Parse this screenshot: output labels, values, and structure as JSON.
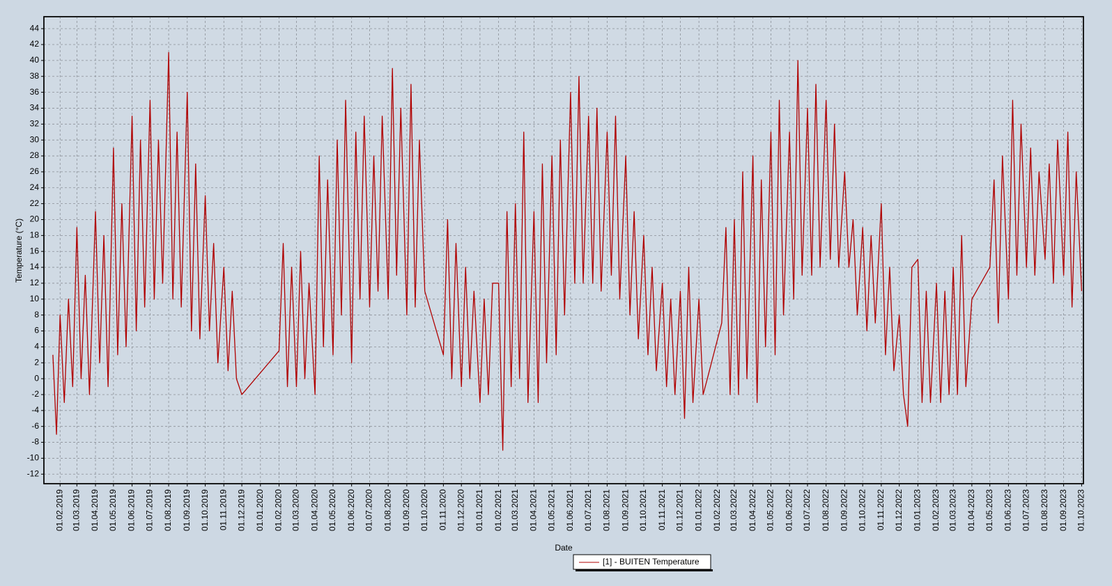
{
  "chart_data": {
    "type": "line",
    "y_label": "Temperature (°C)",
    "x_label": "Date",
    "legend": "bottom",
    "grid": true,
    "xlim": [
      "2019-01-05",
      "2023-10-04"
    ],
    "ylim": [
      -13.2,
      45.5
    ],
    "yticks": [
      -12,
      -10,
      -8,
      -6,
      -4,
      -2,
      0,
      2,
      4,
      6,
      8,
      10,
      12,
      14,
      16,
      18,
      20,
      22,
      24,
      26,
      28,
      30,
      32,
      34,
      36,
      38,
      40,
      42,
      44
    ],
    "xticks": [
      {
        "value": "2019-02-01",
        "label": "01.02.2019"
      },
      {
        "value": "2019-03-01",
        "label": "01.03.2019"
      },
      {
        "value": "2019-04-01",
        "label": "01.04.2019"
      },
      {
        "value": "2019-05-01",
        "label": "01.05.2019"
      },
      {
        "value": "2019-06-01",
        "label": "01.06.2019"
      },
      {
        "value": "2019-07-01",
        "label": "01.07.2019"
      },
      {
        "value": "2019-08-01",
        "label": "01.08.2019"
      },
      {
        "value": "2019-09-01",
        "label": "01.09.2019"
      },
      {
        "value": "2019-10-01",
        "label": "01.10.2019"
      },
      {
        "value": "2019-11-01",
        "label": "01.11.2019"
      },
      {
        "value": "2019-12-01",
        "label": "01.12.2019"
      },
      {
        "value": "2020-01-01",
        "label": "01.01.2020"
      },
      {
        "value": "2020-02-01",
        "label": "01.02.2020"
      },
      {
        "value": "2020-03-01",
        "label": "01.03.2020"
      },
      {
        "value": "2020-04-01",
        "label": "01.04.2020"
      },
      {
        "value": "2020-05-01",
        "label": "01.05.2020"
      },
      {
        "value": "2020-06-01",
        "label": "01.06.2020"
      },
      {
        "value": "2020-07-01",
        "label": "01.07.2020"
      },
      {
        "value": "2020-08-01",
        "label": "01.08.2020"
      },
      {
        "value": "2020-09-01",
        "label": "01.09.2020"
      },
      {
        "value": "2020-10-01",
        "label": "01.10.2020"
      },
      {
        "value": "2020-11-01",
        "label": "01.11.2020"
      },
      {
        "value": "2020-12-01",
        "label": "01.12.2020"
      },
      {
        "value": "2021-01-01",
        "label": "01.01.2021"
      },
      {
        "value": "2021-02-01",
        "label": "01.02.2021"
      },
      {
        "value": "2021-03-01",
        "label": "01.03.2021"
      },
      {
        "value": "2021-04-01",
        "label": "01.04.2021"
      },
      {
        "value": "2021-05-01",
        "label": "01.05.2021"
      },
      {
        "value": "2021-06-01",
        "label": "01.06.2021"
      },
      {
        "value": "2021-07-01",
        "label": "01.07.2021"
      },
      {
        "value": "2021-08-01",
        "label": "01.08.2021"
      },
      {
        "value": "2021-09-01",
        "label": "01.09.2021"
      },
      {
        "value": "2021-10-01",
        "label": "01.10.2021"
      },
      {
        "value": "2021-11-01",
        "label": "01.11.2021"
      },
      {
        "value": "2021-12-01",
        "label": "01.12.2021"
      },
      {
        "value": "2022-01-01",
        "label": "01.01.2022"
      },
      {
        "value": "2022-02-01",
        "label": "01.02.2022"
      },
      {
        "value": "2022-03-01",
        "label": "01.03.2022"
      },
      {
        "value": "2022-04-01",
        "label": "01.04.2022"
      },
      {
        "value": "2022-05-01",
        "label": "01.05.2022"
      },
      {
        "value": "2022-06-01",
        "label": "01.06.2022"
      },
      {
        "value": "2022-07-01",
        "label": "01.07.2022"
      },
      {
        "value": "2022-08-01",
        "label": "01.08.2022"
      },
      {
        "value": "2022-09-01",
        "label": "01.09.2022"
      },
      {
        "value": "2022-10-01",
        "label": "01.10.2022"
      },
      {
        "value": "2022-11-01",
        "label": "01.11.2022"
      },
      {
        "value": "2022-12-01",
        "label": "01.12.2022"
      },
      {
        "value": "2023-01-01",
        "label": "01.01.2023"
      },
      {
        "value": "2023-02-01",
        "label": "01.02.2023"
      },
      {
        "value": "2023-03-01",
        "label": "01.03.2023"
      },
      {
        "value": "2023-04-01",
        "label": "01.04.2023"
      },
      {
        "value": "2023-05-01",
        "label": "01.05.2023"
      },
      {
        "value": "2023-06-01",
        "label": "01.06.2023"
      },
      {
        "value": "2023-07-01",
        "label": "01.07.2023"
      },
      {
        "value": "2023-08-01",
        "label": "01.08.2023"
      },
      {
        "value": "2023-09-01",
        "label": "01.09.2023"
      },
      {
        "value": "2023-10-01",
        "label": "01.10.2023"
      }
    ],
    "series": [
      {
        "name": "[1] - BUITEN Temperature",
        "color": "#b00000",
        "x": [
          "2019-01-20",
          "2019-01-26",
          "2019-02-01",
          "2019-02-08",
          "2019-02-15",
          "2019-02-22",
          "2019-03-01",
          "2019-03-08",
          "2019-03-15",
          "2019-03-22",
          "2019-04-01",
          "2019-04-08",
          "2019-04-15",
          "2019-04-22",
          "2019-05-01",
          "2019-05-08",
          "2019-05-15",
          "2019-05-22",
          "2019-06-01",
          "2019-06-08",
          "2019-06-15",
          "2019-06-22",
          "2019-07-01",
          "2019-07-08",
          "2019-07-15",
          "2019-07-22",
          "2019-08-01",
          "2019-08-08",
          "2019-08-15",
          "2019-08-22",
          "2019-09-01",
          "2019-09-08",
          "2019-09-15",
          "2019-09-22",
          "2019-10-01",
          "2019-10-08",
          "2019-10-15",
          "2019-10-22",
          "2019-11-01",
          "2019-11-08",
          "2019-11-15",
          "2019-11-22",
          "2019-12-01",
          "2020-02-01",
          "2020-02-08",
          "2020-02-15",
          "2020-02-22",
          "2020-03-01",
          "2020-03-08",
          "2020-03-15",
          "2020-03-22",
          "2020-04-01",
          "2020-04-08",
          "2020-04-15",
          "2020-04-22",
          "2020-05-01",
          "2020-05-08",
          "2020-05-15",
          "2020-05-22",
          "2020-06-01",
          "2020-06-08",
          "2020-06-15",
          "2020-06-22",
          "2020-07-01",
          "2020-07-08",
          "2020-07-15",
          "2020-07-22",
          "2020-08-01",
          "2020-08-08",
          "2020-08-15",
          "2020-08-22",
          "2020-09-01",
          "2020-09-08",
          "2020-09-15",
          "2020-09-22",
          "2020-10-01",
          "2020-11-01",
          "2020-11-08",
          "2020-11-15",
          "2020-11-22",
          "2020-12-01",
          "2020-12-08",
          "2020-12-15",
          "2020-12-22",
          "2021-01-01",
          "2021-01-08",
          "2021-01-15",
          "2021-01-22",
          "2021-02-01",
          "2021-02-08",
          "2021-02-15",
          "2021-02-22",
          "2021-03-01",
          "2021-03-08",
          "2021-03-15",
          "2021-03-22",
          "2021-04-01",
          "2021-04-08",
          "2021-04-15",
          "2021-04-22",
          "2021-05-01",
          "2021-05-08",
          "2021-05-15",
          "2021-05-22",
          "2021-06-01",
          "2021-06-08",
          "2021-06-15",
          "2021-06-22",
          "2021-07-01",
          "2021-07-08",
          "2021-07-15",
          "2021-07-22",
          "2021-08-01",
          "2021-08-08",
          "2021-08-15",
          "2021-08-22",
          "2021-09-01",
          "2021-09-08",
          "2021-09-15",
          "2021-09-22",
          "2021-10-01",
          "2021-10-08",
          "2021-10-15",
          "2021-10-22",
          "2021-11-01",
          "2021-11-08",
          "2021-11-15",
          "2021-11-22",
          "2021-12-01",
          "2021-12-08",
          "2021-12-15",
          "2021-12-22",
          "2022-01-01",
          "2022-01-08",
          "2022-01-15",
          "2022-02-08",
          "2022-02-15",
          "2022-02-22",
          "2022-03-01",
          "2022-03-08",
          "2022-03-15",
          "2022-03-22",
          "2022-04-01",
          "2022-04-08",
          "2022-04-15",
          "2022-04-22",
          "2022-05-01",
          "2022-05-08",
          "2022-05-15",
          "2022-05-22",
          "2022-06-01",
          "2022-06-08",
          "2022-06-15",
          "2022-06-22",
          "2022-07-01",
          "2022-07-08",
          "2022-07-15",
          "2022-07-22",
          "2022-08-01",
          "2022-08-08",
          "2022-08-15",
          "2022-08-22",
          "2022-09-01",
          "2022-09-08",
          "2022-09-15",
          "2022-09-22",
          "2022-10-01",
          "2022-10-08",
          "2022-10-15",
          "2022-10-22",
          "2022-11-01",
          "2022-11-08",
          "2022-11-15",
          "2022-11-22",
          "2022-12-01",
          "2022-12-08",
          "2022-12-15",
          "2022-12-22",
          "2023-01-01",
          "2023-01-08",
          "2023-01-15",
          "2023-01-22",
          "2023-02-01",
          "2023-02-08",
          "2023-02-15",
          "2023-02-22",
          "2023-03-01",
          "2023-03-08",
          "2023-03-15",
          "2023-03-22",
          "2023-04-01",
          "2023-05-01",
          "2023-05-08",
          "2023-05-15",
          "2023-05-22",
          "2023-06-01",
          "2023-06-08",
          "2023-06-15",
          "2023-06-22",
          "2023-07-01",
          "2023-07-08",
          "2023-07-15",
          "2023-07-22",
          "2023-08-01",
          "2023-08-08",
          "2023-08-15",
          "2023-08-22",
          "2023-09-01",
          "2023-09-08",
          "2023-09-15",
          "2023-09-22",
          "2023-10-01"
        ],
        "values": [
          3,
          -7,
          8,
          -3,
          10,
          -1,
          19,
          0,
          13,
          -2,
          21,
          2,
          18,
          -1,
          29,
          3,
          22,
          4,
          33,
          6,
          30,
          9,
          35,
          10,
          30,
          12,
          41,
          10,
          31,
          9,
          36,
          6,
          27,
          5,
          23,
          6,
          17,
          2,
          14,
          1,
          11,
          0,
          -2,
          3.5,
          17,
          -1,
          14,
          -1,
          16,
          0,
          12,
          -2,
          28,
          4,
          25,
          3,
          30,
          8,
          35,
          2,
          31,
          10,
          33,
          9,
          28,
          11,
          33,
          10,
          39,
          13,
          34,
          8,
          37,
          9,
          30,
          11,
          3,
          20,
          0,
          17,
          -1,
          14,
          0,
          11,
          -3,
          10,
          -2,
          12,
          12,
          -9,
          21,
          -1,
          22,
          0,
          31,
          -3,
          21,
          -3,
          27,
          2,
          28,
          3,
          30,
          8,
          36,
          12,
          38,
          12,
          33,
          12,
          34,
          11,
          31,
          13,
          33,
          10,
          28,
          8,
          21,
          5,
          18,
          3,
          14,
          1,
          12,
          -1,
          10,
          -2,
          11,
          -5,
          14,
          -3,
          10,
          -2,
          0,
          7,
          19,
          -2,
          20,
          -2,
          26,
          0,
          28,
          -3,
          25,
          4,
          31,
          3,
          35,
          8,
          31,
          10,
          40,
          13,
          34,
          13,
          37,
          14,
          35,
          15,
          32,
          14,
          26,
          14,
          20,
          8,
          19,
          6,
          18,
          7,
          22,
          3,
          14,
          1,
          8,
          -2,
          -6,
          14,
          15,
          -3,
          11,
          -3,
          12,
          -3,
          11,
          -2,
          14,
          -2,
          18,
          -1,
          10,
          14,
          25,
          7,
          28,
          10,
          35,
          13,
          32,
          14,
          29,
          13,
          26,
          15,
          27,
          12,
          30,
          13,
          31,
          9,
          26,
          11
        ]
      }
    ]
  }
}
